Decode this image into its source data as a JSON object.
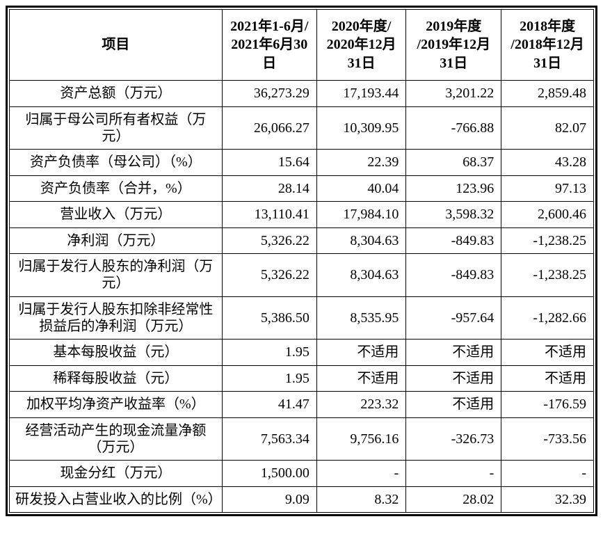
{
  "table": {
    "columns": [
      "项目",
      "2021年1-6月/\n2021年6月30\n日",
      "2020年度/\n2020年12月\n31日",
      "2019年度\n/2019年12月\n31日",
      "2018年度\n/2018年12月\n31日"
    ],
    "rows": [
      {
        "label": "资产总额（万元）",
        "values": [
          "36,273.29",
          "17,193.44",
          "3,201.22",
          "2,859.48"
        ]
      },
      {
        "label": "归属于母公司所有者权益（万元）",
        "values": [
          "26,066.27",
          "10,309.95",
          "-766.88",
          "82.07"
        ]
      },
      {
        "label": "资产负债率（母公司）（%）",
        "values": [
          "15.64",
          "22.39",
          "68.37",
          "43.28"
        ]
      },
      {
        "label": "资产负债率（合并，%）",
        "values": [
          "28.14",
          "40.04",
          "123.96",
          "97.13"
        ]
      },
      {
        "label": "营业收入（万元）",
        "values": [
          "13,110.41",
          "17,984.10",
          "3,598.32",
          "2,600.46"
        ]
      },
      {
        "label": "净利润（万元）",
        "values": [
          "5,326.22",
          "8,304.63",
          "-849.83",
          "-1,238.25"
        ]
      },
      {
        "label": "归属于发行人股东的净利润（万元）",
        "values": [
          "5,326.22",
          "8,304.63",
          "-849.83",
          "-1,238.25"
        ]
      },
      {
        "label": "归属于发行人股东扣除非经常性损益后的净利润（万元）",
        "values": [
          "5,386.50",
          "8,535.95",
          "-957.64",
          "-1,282.66"
        ]
      },
      {
        "label": "基本每股收益（元）",
        "values": [
          "1.95",
          "不适用",
          "不适用",
          "不适用"
        ]
      },
      {
        "label": "稀释每股收益（元）",
        "values": [
          "1.95",
          "不适用",
          "不适用",
          "不适用"
        ]
      },
      {
        "label": "加权平均净资产收益率（%）",
        "values": [
          "41.47",
          "223.32",
          "不适用",
          "-176.59"
        ]
      },
      {
        "label": "经营活动产生的现金流量净额（万元）",
        "values": [
          "7,563.34",
          "9,756.16",
          "-326.73",
          "-733.56"
        ]
      },
      {
        "label": "现金分红（万元）",
        "values": [
          "1,500.00",
          "-",
          "-",
          "-"
        ]
      },
      {
        "label": "研发投入占营业收入的比例（%）",
        "values": [
          "9.09",
          "8.32",
          "28.02",
          "32.39"
        ]
      }
    ]
  }
}
